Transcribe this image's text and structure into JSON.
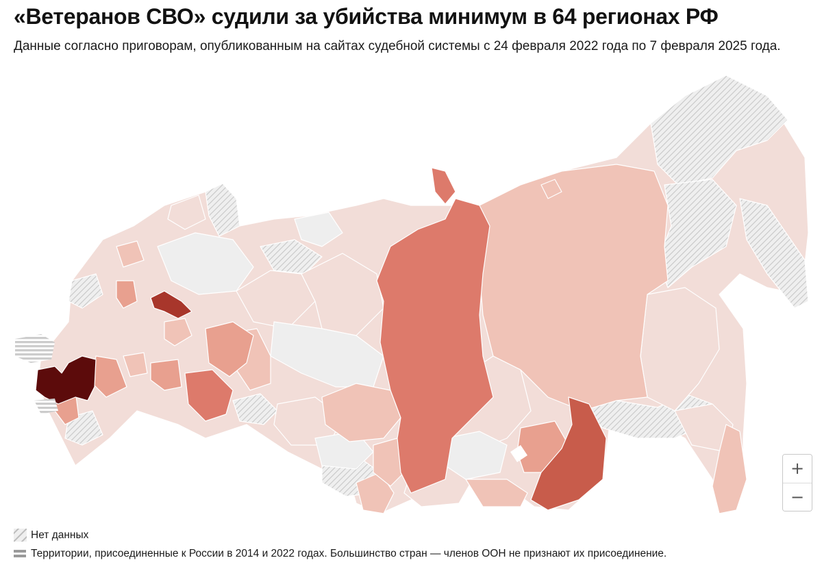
{
  "header": {
    "title": "«Ветеранов СВО» судили за убийства минимум в 64 регионах РФ",
    "subtitle": "Данные согласно приговорам, опубликованным на сайтах судебной системы с 24 февраля 2022 года по 7 февраля 2025 года."
  },
  "legend": {
    "no_data": "Нет данных",
    "annexed": "Территории, присоединенные к России в 2014 и 2022 годах. Большинство стран — членов ООН не признают их присоединение."
  },
  "zoom": {
    "in_label": "+",
    "out_label": "−"
  },
  "colors": {
    "level_0": "#eeeeee",
    "level_1": "#f2ddd8",
    "level_2": "#f0c3b7",
    "level_3": "#e8a08f",
    "level_4": "#dd7a6b",
    "level_5": "#c85c4b",
    "level_6": "#a8362b",
    "level_7": "#5c0b0b",
    "hatch": "#c7c7c7"
  }
}
